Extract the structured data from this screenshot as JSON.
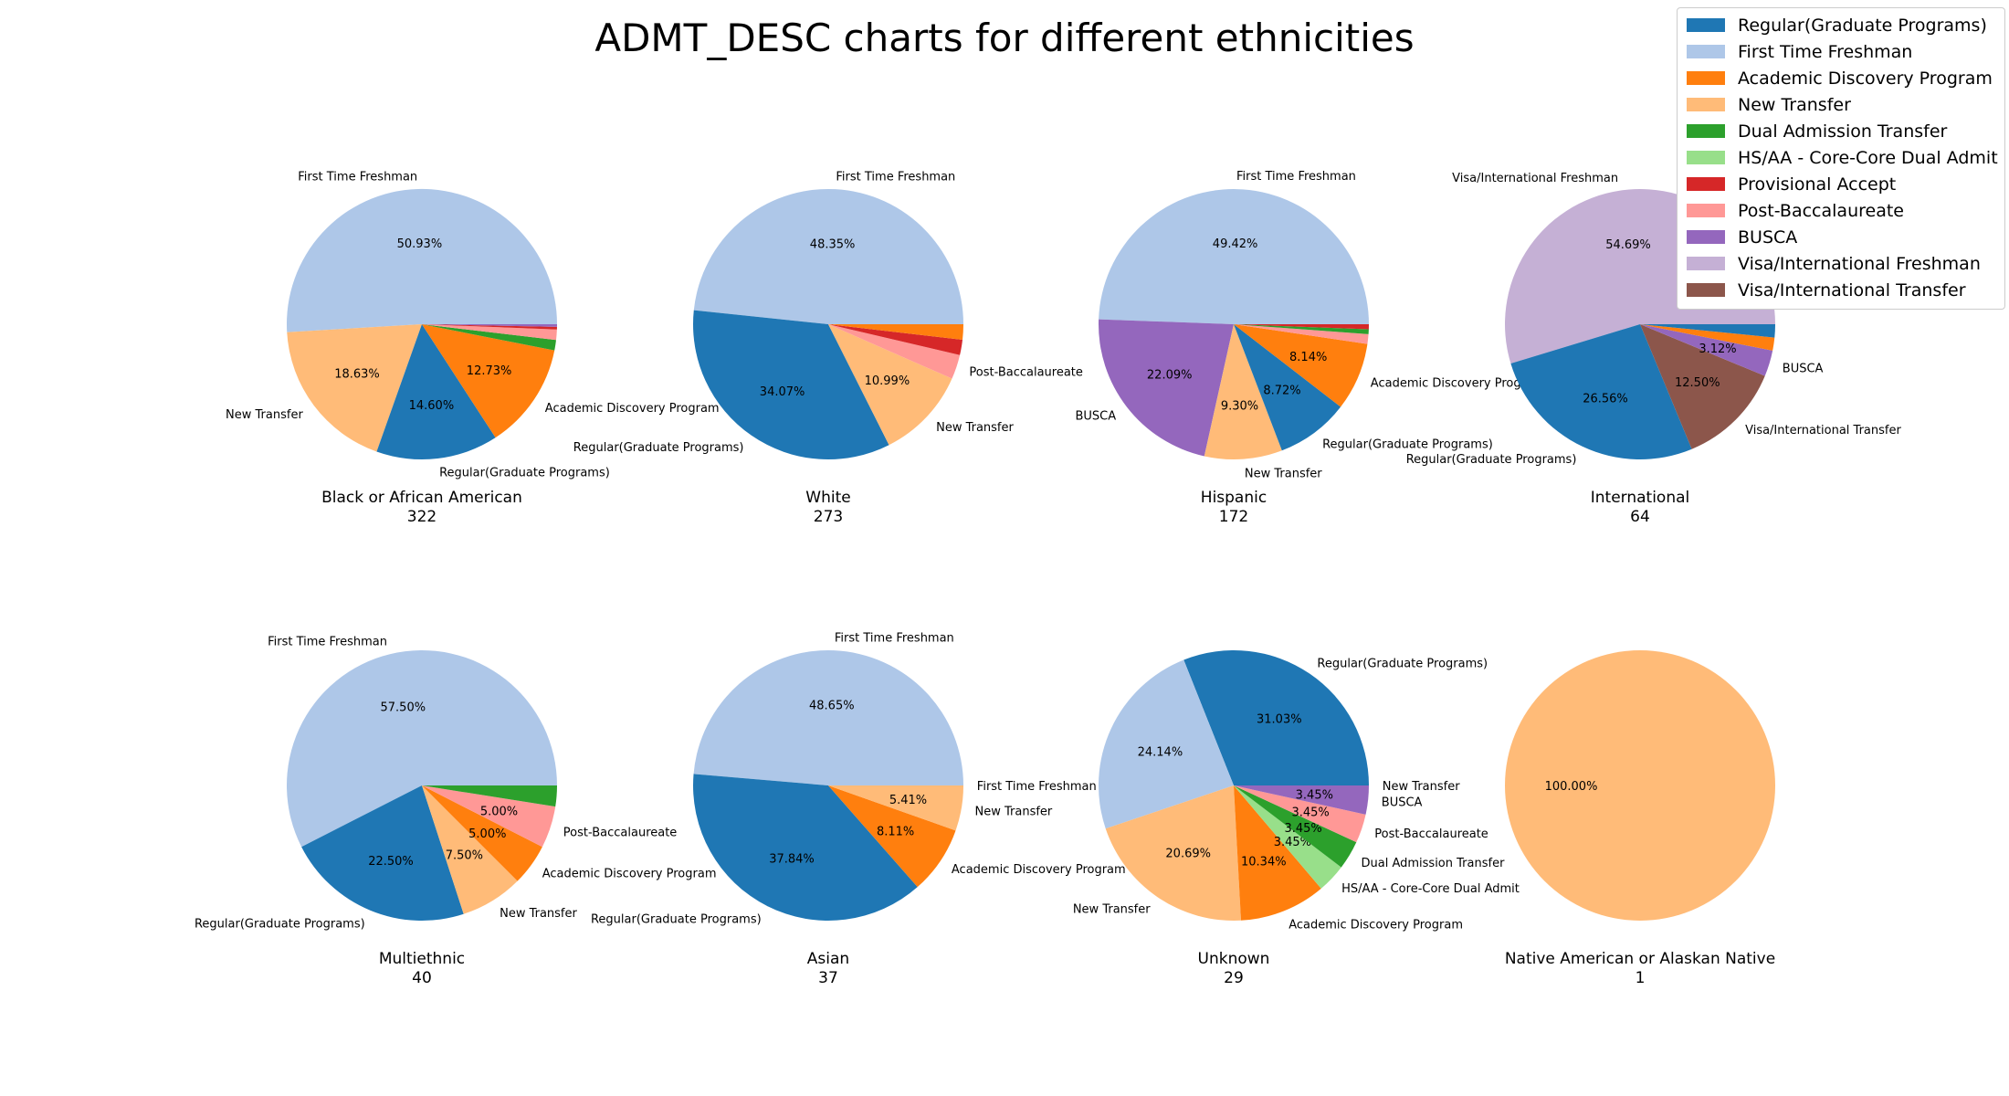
{
  "title": "ADMT_DESC charts for different ethnicities",
  "legend": {
    "position": "top-right",
    "items": [
      {
        "label": "Regular(Graduate Programs)",
        "color": "#1f77b4"
      },
      {
        "label": "First Time Freshman",
        "color": "#aec7e8"
      },
      {
        "label": "Academic Discovery Program",
        "color": "#ff7f0e"
      },
      {
        "label": "New Transfer",
        "color": "#ffbb78"
      },
      {
        "label": "Dual Admission Transfer",
        "color": "#2ca02c"
      },
      {
        "label": "HS/AA - Core-Core Dual Admit",
        "color": "#98df8a"
      },
      {
        "label": "Provisional Accept",
        "color": "#d62728"
      },
      {
        "label": "Post-Baccalaureate",
        "color": "#ff9896"
      },
      {
        "label": "BUSCA",
        "color": "#9467bd"
      },
      {
        "label": "Visa/International Freshman",
        "color": "#c5b0d5"
      },
      {
        "label": "Visa/International Transfer",
        "color": "#8c564b"
      }
    ]
  },
  "chart_data": [
    {
      "type": "pie",
      "title": "Black or African American",
      "count": "322",
      "slices": [
        {
          "label": "First Time Freshman",
          "value": 50.93,
          "pct_label": "50.93%",
          "show_label": true
        },
        {
          "label": "New Transfer",
          "value": 18.63,
          "pct_label": "18.63%",
          "show_label": true
        },
        {
          "label": "Regular(Graduate Programs)",
          "value": 14.6,
          "pct_label": "14.60%",
          "show_label": true
        },
        {
          "label": "Academic Discovery Program",
          "value": 12.73,
          "pct_label": "12.73%",
          "show_label": true
        },
        {
          "label": "Dual Admission Transfer",
          "value": 1.24,
          "pct_label": "",
          "show_label": false
        },
        {
          "label": "Post-Baccalaureate",
          "value": 1.24,
          "pct_label": "",
          "show_label": false
        },
        {
          "label": "Provisional Accept",
          "value": 0.31,
          "pct_label": "",
          "show_label": false
        },
        {
          "label": "BUSCA",
          "value": 0.31,
          "pct_label": "",
          "show_label": false
        }
      ]
    },
    {
      "type": "pie",
      "title": "White",
      "count": "273",
      "slices": [
        {
          "label": "First Time Freshman",
          "value": 48.35,
          "pct_label": "48.35%",
          "show_label": true
        },
        {
          "label": "Regular(Graduate Programs)",
          "value": 34.07,
          "pct_label": "34.07%",
          "show_label": true
        },
        {
          "label": "New Transfer",
          "value": 10.99,
          "pct_label": "10.99%",
          "show_label": true
        },
        {
          "label": "Post-Baccalaureate",
          "value": 2.93,
          "pct_label": "",
          "show_label": true
        },
        {
          "label": "Provisional Accept",
          "value": 1.83,
          "pct_label": "",
          "show_label": false
        },
        {
          "label": "Academic Discovery Program",
          "value": 1.83,
          "pct_label": "",
          "show_label": false
        }
      ]
    },
    {
      "type": "pie",
      "title": "Hispanic",
      "count": "172",
      "slices": [
        {
          "label": "First Time Freshman",
          "value": 49.42,
          "pct_label": "49.42%",
          "show_label": true
        },
        {
          "label": "BUSCA",
          "value": 22.09,
          "pct_label": "22.09%",
          "show_label": true
        },
        {
          "label": "New Transfer",
          "value": 9.3,
          "pct_label": "9.30%",
          "show_label": true
        },
        {
          "label": "Regular(Graduate Programs)",
          "value": 8.72,
          "pct_label": "8.72%",
          "show_label": true
        },
        {
          "label": "Academic Discovery Program",
          "value": 8.14,
          "pct_label": "8.14%",
          "show_label": true
        },
        {
          "label": "Post-Baccalaureate",
          "value": 1.16,
          "pct_label": "",
          "show_label": false
        },
        {
          "label": "Dual Admission Transfer",
          "value": 0.58,
          "pct_label": "",
          "show_label": false
        },
        {
          "label": "Provisional Accept",
          "value": 0.59,
          "pct_label": "",
          "show_label": false
        }
      ]
    },
    {
      "type": "pie",
      "title": "International",
      "count": "64",
      "slices": [
        {
          "label": "Visa/International Freshman",
          "value": 54.69,
          "pct_label": "54.69%",
          "show_label": true
        },
        {
          "label": "Regular(Graduate Programs)",
          "value": 26.56,
          "pct_label": "26.56%",
          "show_label": true
        },
        {
          "label": "Visa/International Transfer",
          "value": 12.5,
          "pct_label": "12.50%",
          "show_label": true
        },
        {
          "label": "BUSCA",
          "value": 3.12,
          "pct_label": "3.12%",
          "show_label": true
        },
        {
          "label": "Academic Discovery Program",
          "value": 1.56,
          "pct_label": "",
          "show_label": false
        },
        {
          "label": "Regular(Graduate Programs)",
          "value": 1.57,
          "pct_label": "",
          "show_label": false
        }
      ]
    },
    {
      "type": "pie",
      "title": "Multiethnic",
      "count": "40",
      "slices": [
        {
          "label": "First Time Freshman",
          "value": 57.5,
          "pct_label": "57.50%",
          "show_label": true
        },
        {
          "label": "Regular(Graduate Programs)",
          "value": 22.5,
          "pct_label": "22.50%",
          "show_label": true
        },
        {
          "label": "New Transfer",
          "value": 7.5,
          "pct_label": "7.50%",
          "show_label": true
        },
        {
          "label": "Academic Discovery Program",
          "value": 5.0,
          "pct_label": "5.00%",
          "show_label": true
        },
        {
          "label": "Post-Baccalaureate",
          "value": 5.0,
          "pct_label": "5.00%",
          "show_label": true
        },
        {
          "label": "Dual Admission Transfer",
          "value": 2.5,
          "pct_label": "",
          "show_label": false
        }
      ]
    },
    {
      "type": "pie",
      "title": "Asian",
      "count": "37",
      "slices": [
        {
          "label": "First Time Freshman",
          "value": 48.65,
          "pct_label": "48.65%",
          "show_label": true
        },
        {
          "label": "Regular(Graduate Programs)",
          "value": 37.84,
          "pct_label": "37.84%",
          "show_label": true
        },
        {
          "label": "Academic Discovery Program",
          "value": 8.11,
          "pct_label": "8.11%",
          "show_label": true
        },
        {
          "label": "New Transfer",
          "value": 5.41,
          "pct_label": "5.41%",
          "show_label": true
        },
        {
          "label": "First Time Freshman",
          "value": 0.0,
          "pct_label": "",
          "show_label": true
        }
      ]
    },
    {
      "type": "pie",
      "title": "Unknown",
      "count": "29",
      "slices": [
        {
          "label": "Regular(Graduate Programs)",
          "value": 31.03,
          "pct_label": "31.03%",
          "show_label": true
        },
        {
          "label": "First Time Freshman",
          "value": 24.14,
          "pct_label": "24.14%",
          "show_label": false
        },
        {
          "label": "New Transfer",
          "value": 20.69,
          "pct_label": "20.69%",
          "show_label": true
        },
        {
          "label": "Academic Discovery Program",
          "value": 10.34,
          "pct_label": "10.34%",
          "show_label": true
        },
        {
          "label": "HS/AA - Core-Core Dual Admit",
          "value": 3.45,
          "pct_label": "3.45%",
          "show_label": true
        },
        {
          "label": "Dual Admission Transfer",
          "value": 3.45,
          "pct_label": "3.45%",
          "show_label": true
        },
        {
          "label": "Post-Baccalaureate",
          "value": 3.45,
          "pct_label": "3.45%",
          "show_label": true
        },
        {
          "label": "BUSCA",
          "value": 3.45,
          "pct_label": "3.45%",
          "show_label": true
        },
        {
          "label": "New Transfer",
          "value": 0.0,
          "pct_label": "",
          "show_label": true
        }
      ]
    },
    {
      "type": "pie",
      "title": "Native American or Alaskan Native",
      "count": "1",
      "slices": [
        {
          "label": "New Transfer",
          "value": 100.0,
          "pct_label": "100.00%",
          "show_label": false
        }
      ]
    }
  ]
}
